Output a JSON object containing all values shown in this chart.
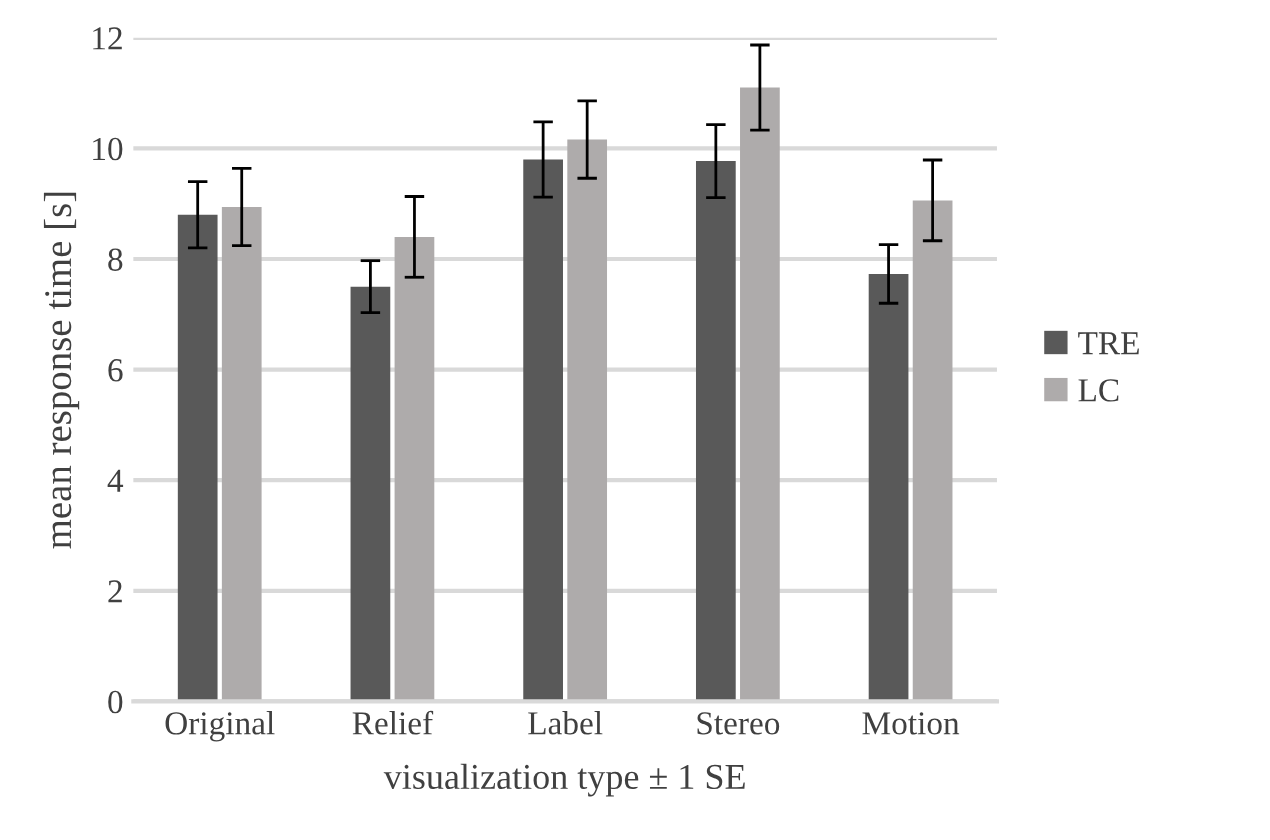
{
  "chart_data": {
    "type": "bar",
    "xlabel": "visualization type ± 1 SE",
    "ylabel": "mean response time [s]",
    "categories": [
      "Original",
      "Relief",
      "Label",
      "Stereo",
      "Motion"
    ],
    "series": [
      {
        "name": "TRE",
        "color": "#595959",
        "values": [
          8.8,
          7.5,
          9.8,
          9.77,
          7.73
        ],
        "errors": [
          0.6,
          0.47,
          0.68,
          0.66,
          0.53
        ]
      },
      {
        "name": "LC",
        "color": "#aeabab",
        "values": [
          8.94,
          8.4,
          10.16,
          11.1,
          9.06
        ],
        "errors": [
          0.7,
          0.73,
          0.7,
          0.77,
          0.73
        ]
      }
    ],
    "ylim": [
      0,
      12
    ],
    "yticks": [
      0,
      2,
      4,
      6,
      8,
      10,
      12
    ],
    "grid": "y",
    "legend": "right"
  }
}
